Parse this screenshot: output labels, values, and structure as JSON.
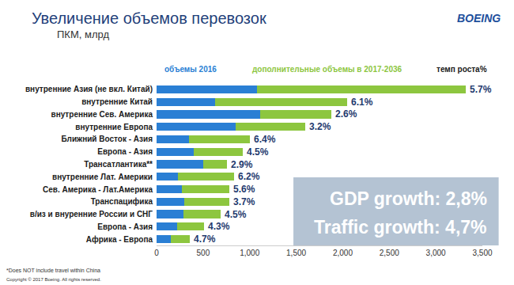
{
  "chart_data": {
    "type": "bar",
    "orientation": "horizontal",
    "stacked": true,
    "grid": false,
    "title": "Увеличение объемов перевозок",
    "subtitle": "ПКМ, млрд",
    "logo": "BOEING",
    "categories": [
      "внутренние Азия (не вкл. Китай)",
      "внутренние Китай",
      "внутренние Сев. Америка",
      "внутренние Европа",
      "Ближний Восток - Азия",
      "Европа - Азия",
      "Трансатлантика**",
      "внутренние Лат. Америки",
      "Сев. Америка - Лат.Америка",
      "Транспацифика",
      "в/из и внуренние России и СНГ",
      "Европа - Азия",
      "Африка - Европа"
    ],
    "series": [
      {
        "name": "объемы 2016",
        "color": "#2a7fd4",
        "values": [
          1080,
          630,
          1110,
          850,
          350,
          400,
          500,
          230,
          270,
          300,
          290,
          220,
          150
        ]
      },
      {
        "name": "дополнительные объемы в 2017-2036",
        "color": "#8dc63f",
        "values": [
          2240,
          1420,
          770,
          750,
          650,
          530,
          260,
          600,
          510,
          480,
          400,
          290,
          210
        ]
      }
    ],
    "growth": {
      "name": "темп роста%",
      "color": "#1f3a6e",
      "values": [
        5.7,
        6.1,
        2.6,
        3.2,
        6.4,
        4.5,
        2.9,
        6.2,
        5.6,
        3.7,
        4.5,
        4.3,
        4.7
      ],
      "value_labels": [
        "5.7%",
        "6.1%",
        "2.6%",
        "3.2%",
        "6.4%",
        "4.5%",
        "2.9%",
        "6.2%",
        "5.6%",
        "3.7%",
        "4.5%",
        "4.3%",
        "4.7%"
      ]
    },
    "annotations": [
      "GDP growth: 2,8%",
      "Traffic growth: 4,7%"
    ],
    "footnotes": [
      "*Does NOT include travel within China",
      "Copyright © 2017 Boeing. All rights reserved."
    ],
    "xlim": [
      0,
      3500
    ],
    "xticks": [
      0,
      500,
      {
        "value": 1000,
        "label": "1,000"
      },
      {
        "value": 1500,
        "label": "1,500"
      },
      {
        "value": 2000,
        "label": "2,000"
      },
      {
        "value": 2500,
        "label": "2,500"
      },
      {
        "value": 3000,
        "label": "3,000"
      },
      {
        "value": 3500,
        "label": "3,500"
      }
    ]
  }
}
